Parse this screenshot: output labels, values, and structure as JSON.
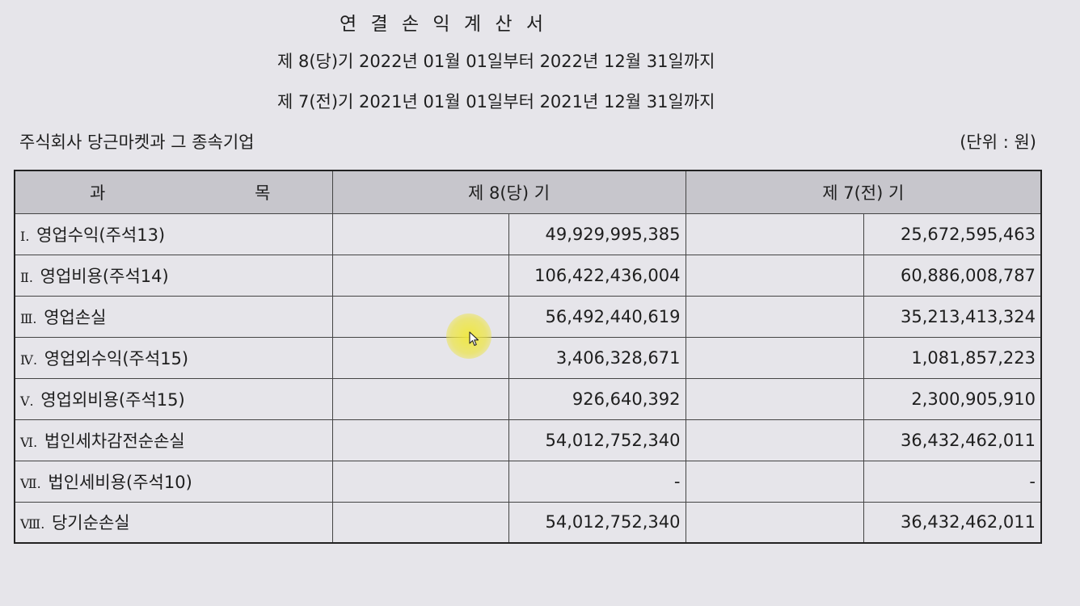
{
  "header": {
    "title": "연 결 손 익 계 산 서",
    "period_current": "제 8(당)기 2022년 01월 01일부터 2022년 12월 31일까지",
    "period_prior": "제 7(전)기 2021년 01월 01일부터 2021년 12월 31일까지",
    "company": "주식회사 당근마켓과 그 종속기업",
    "unit": "(단위 : 원)"
  },
  "table": {
    "col_subject_left": "과",
    "col_subject_right": "목",
    "col_current": "제 8(당) 기",
    "col_prior": "제 7(전) 기",
    "rows": [
      {
        "numeral": "Ⅰ.",
        "label": "영업수익(주석13)",
        "current": "49,929,995,385",
        "prior": "25,672,595,463"
      },
      {
        "numeral": "Ⅱ.",
        "label": "영업비용(주석14)",
        "current": "106,422,436,004",
        "prior": "60,886,008,787"
      },
      {
        "numeral": "Ⅲ.",
        "label": "영업손실",
        "current": "56,492,440,619",
        "prior": "35,213,413,324"
      },
      {
        "numeral": "Ⅳ.",
        "label": "영업외수익(주석15)",
        "current": "3,406,328,671",
        "prior": "1,081,857,223"
      },
      {
        "numeral": "Ⅴ.",
        "label": "영업외비용(주석15)",
        "current": "926,640,392",
        "prior": "2,300,905,910"
      },
      {
        "numeral": "Ⅵ.",
        "label": "법인세차감전순손실",
        "current": "54,012,752,340",
        "prior": "36,432,462,011"
      },
      {
        "numeral": "Ⅶ.",
        "label": "법인세비용(주석10)",
        "current": "-",
        "prior": "-"
      },
      {
        "numeral": "Ⅷ.",
        "label": "당기순손실",
        "current": "54,012,752,340",
        "prior": "36,432,462,011"
      }
    ]
  },
  "overlay": {
    "cursor_icon": "arrow-pointer-icon",
    "highlight_color": "#f0e83c"
  }
}
